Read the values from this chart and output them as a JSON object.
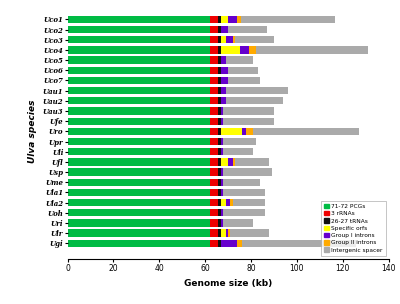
{
  "species": [
    "Uco1",
    "Uco2",
    "Uco3",
    "Uco4",
    "Uco5",
    "Uco6",
    "Uco7",
    "Uau1",
    "Uau2",
    "Uau3",
    "Ufe",
    "Uro",
    "Upr",
    "Uli",
    "Ufl",
    "Usp",
    "Ume",
    "Ula1",
    "Ula2",
    "Uoh",
    "Uri",
    "Ulr",
    "Ugi"
  ],
  "pcg": [
    62,
    62,
    62,
    62,
    62,
    62,
    62,
    62,
    62,
    62,
    62,
    62,
    62,
    62,
    62,
    62,
    62,
    62,
    62,
    62,
    62,
    62,
    62
  ],
  "rrna": [
    3.5,
    3.5,
    3.5,
    3.5,
    3.5,
    3.5,
    3.5,
    3.5,
    3.5,
    3.5,
    3.5,
    3.5,
    3.5,
    3.5,
    3.5,
    3.5,
    3.5,
    3.5,
    3.5,
    3.5,
    3.5,
    3.5,
    3.5
  ],
  "trna": [
    1.5,
    1.5,
    1.5,
    1.5,
    1.5,
    1.5,
    1.5,
    1.5,
    1.5,
    1.5,
    1.5,
    1.5,
    1.5,
    1.5,
    1.5,
    1.5,
    1.5,
    1.5,
    1.5,
    1.5,
    1.5,
    1.5,
    1.5
  ],
  "spec_orfs": [
    3,
    0,
    2,
    8,
    0,
    0,
    0,
    0,
    0,
    0,
    0,
    9,
    0,
    0,
    3,
    0,
    0,
    0,
    2,
    0,
    0,
    2,
    0
  ],
  "grp1": [
    4,
    3,
    3,
    4,
    2,
    3,
    3,
    2,
    2,
    1,
    1,
    2,
    1,
    1,
    2,
    1,
    1,
    1,
    2,
    1,
    1,
    1,
    7
  ],
  "grp2": [
    1.5,
    0,
    1,
    3,
    0,
    0,
    0,
    0,
    0,
    0,
    0,
    3,
    0,
    0,
    1,
    0,
    0,
    0,
    1,
    0,
    0,
    1,
    2
  ],
  "spacer": [
    41,
    17,
    17,
    49,
    12,
    13,
    14,
    27,
    25,
    22,
    22,
    46,
    14,
    13,
    15,
    21,
    16,
    18,
    14,
    18,
    13,
    17,
    50
  ],
  "colors": {
    "pcg": "#00bb44",
    "rrna": "#ee0000",
    "trna": "#111111",
    "spec_orfs": "#ffff00",
    "grp1": "#6600cc",
    "grp2": "#ffaa00",
    "spacer": "#aaaaaa"
  },
  "legend_labels": [
    "71-72 PCGs",
    "3 rRNAs",
    "26-27 tRNAs",
    "Specific orfs",
    "Group I introns",
    "Group II introns",
    "Intergenic spacer"
  ],
  "xlabel": "Genome size (kb)",
  "ylabel": "Ulva species",
  "xlim": [
    0,
    140
  ],
  "xticks": [
    0,
    20,
    40,
    60,
    80,
    100,
    120,
    140
  ],
  "bar_height": 0.72,
  "figsize": [
    4.0,
    3.04
  ],
  "dpi": 100
}
